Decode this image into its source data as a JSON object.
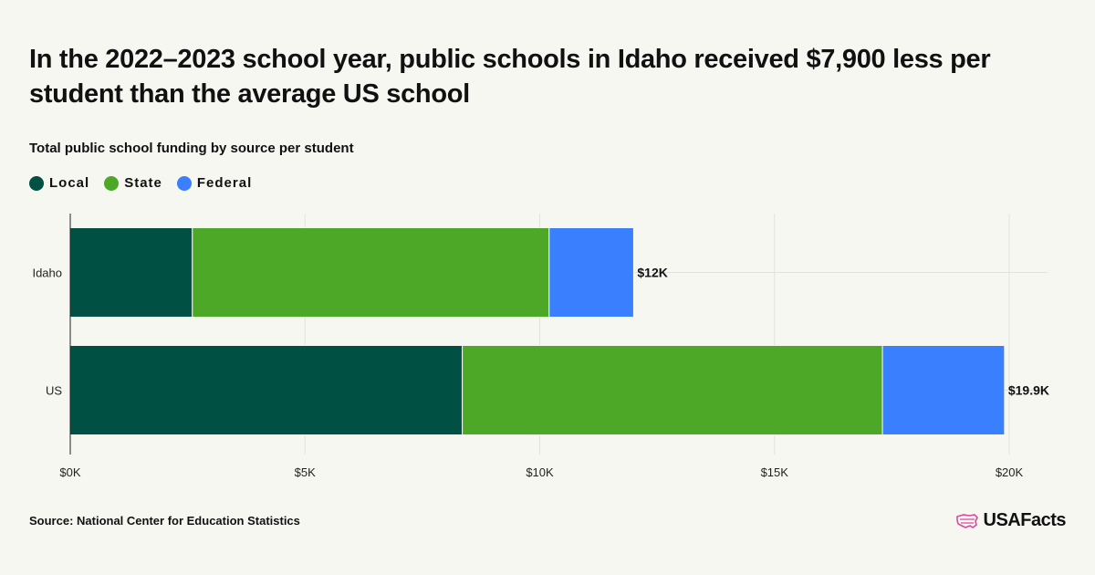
{
  "title": "In the 2022–2023 school year, public schools in Idaho received $7,900 less per student than the average US school",
  "chart_data": {
    "type": "bar",
    "orientation": "horizontal",
    "stacked": true,
    "subtitle": "Total public school funding by source per student",
    "categories": [
      "Idaho",
      "US"
    ],
    "series": [
      {
        "name": "Local",
        "color": "#005143",
        "values": [
          2600,
          8350
        ]
      },
      {
        "name": "State",
        "color": "#4ea828",
        "values": [
          7600,
          8950
        ]
      },
      {
        "name": "Federal",
        "color": "#3a7ffe",
        "values": [
          1800,
          2600
        ]
      }
    ],
    "totals": [
      "$12K",
      "$19.9K"
    ],
    "xlim": [
      0,
      20000
    ],
    "x_ticks": [
      0,
      5000,
      10000,
      15000,
      20000
    ],
    "x_tick_labels": [
      "$0K",
      "$5K",
      "$10K",
      "$15K",
      "$20K"
    ],
    "legend_position": "top-left",
    "grid": true
  },
  "source": "Source: National Center for Education Statistics",
  "brand": "USAFacts"
}
